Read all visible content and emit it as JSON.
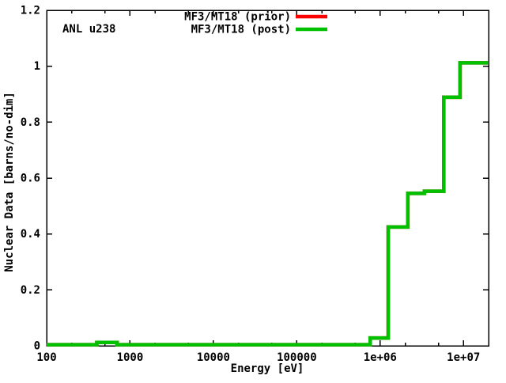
{
  "chart_data": {
    "type": "line",
    "line_style": "steps",
    "annotation": "ANL u238",
    "xlabel": "Energy [eV]",
    "ylabel": "Nuclear Data [barns/no-dim]",
    "x_scale": "log",
    "xlim": [
      100,
      20000000
    ],
    "ylim": [
      0,
      1.2
    ],
    "x_ticks": [
      {
        "value": 100,
        "label": "100"
      },
      {
        "value": 1000,
        "label": "1000"
      },
      {
        "value": 10000,
        "label": "10000"
      },
      {
        "value": 100000,
        "label": "100000"
      },
      {
        "value": 1000000,
        "label": "1e+06"
      },
      {
        "value": 10000000,
        "label": "1e+07"
      }
    ],
    "x_minor_tick_multipliers": [
      2,
      5
    ],
    "y_ticks": [
      {
        "value": 0,
        "label": "0"
      },
      {
        "value": 0.2,
        "label": "0.2"
      },
      {
        "value": 0.4,
        "label": "0.4"
      },
      {
        "value": 0.6,
        "label": "0.6"
      },
      {
        "value": 0.8,
        "label": "0.8"
      },
      {
        "value": 1,
        "label": "1"
      },
      {
        "value": 1.2,
        "label": "1.2"
      }
    ],
    "grid": false,
    "legend_position": "top-right-inside",
    "legend": [
      {
        "label": "MF3/MT18 (prior)",
        "color": "#ff0000"
      },
      {
        "label": "MF3/MT18 (post)",
        "color": "#00c000"
      }
    ],
    "series": [
      {
        "name": "MF3/MT18 (prior)",
        "color": "#ff0000",
        "steps": [
          [
            100,
            400,
            0.004
          ],
          [
            400,
            700,
            0.012
          ],
          [
            700,
            760000,
            0.004
          ],
          [
            760000,
            1250000,
            0.028
          ],
          [
            1250000,
            2150000,
            0.425
          ],
          [
            2150000,
            3400000,
            0.545
          ],
          [
            3400000,
            5800000,
            0.553
          ],
          [
            5800000,
            9100000,
            0.889
          ],
          [
            9100000,
            20000000,
            1.012
          ]
        ]
      },
      {
        "name": "MF3/MT18 (post)",
        "color": "#00c000",
        "steps": [
          [
            100,
            400,
            0.004
          ],
          [
            400,
            700,
            0.012
          ],
          [
            700,
            760000,
            0.004
          ],
          [
            760000,
            1250000,
            0.028
          ],
          [
            1250000,
            2150000,
            0.425
          ],
          [
            2150000,
            3400000,
            0.545
          ],
          [
            3400000,
            5800000,
            0.553
          ],
          [
            5800000,
            9100000,
            0.889
          ],
          [
            9100000,
            20000000,
            1.012
          ]
        ]
      }
    ],
    "note": "prior curve is fully overlapped by the post curve"
  }
}
